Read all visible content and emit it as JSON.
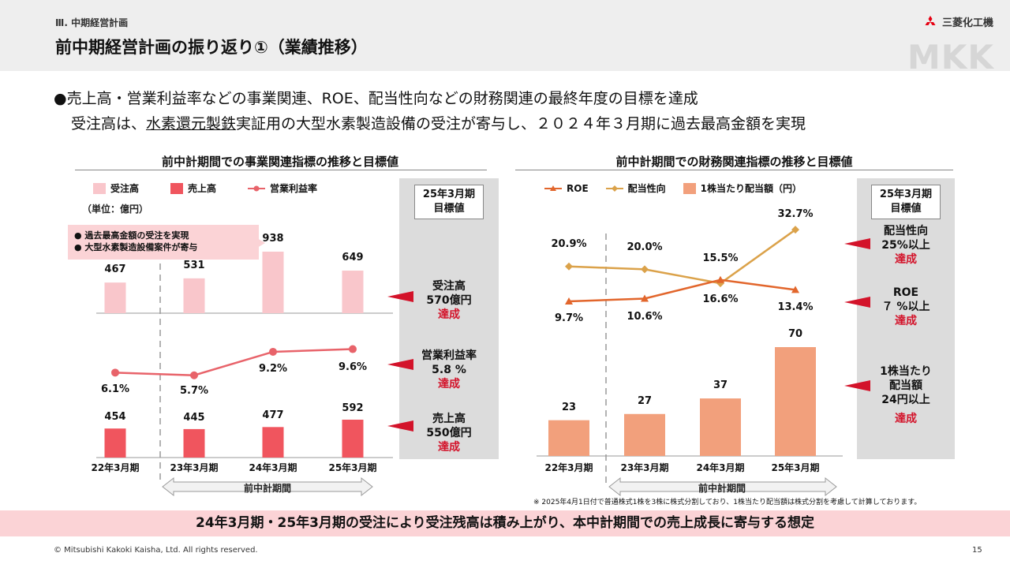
{
  "header": {
    "section_label": "Ⅲ. 中期経営計画",
    "title": "前中期経営計画の振り返り①（業績推移）",
    "logo_text": "三菱化工機",
    "watermark": "MKK"
  },
  "intro": {
    "line1": "●売上高・営業利益率などの事業関連、ROE、配当性向などの財務関連の最終年度の目標を達成",
    "line2_pre": "受注高は、",
    "line2_underlined": "水素還元製鉄",
    "line2_post": "実証用の大型水素製造設備の受注が寄与し、２０２４年３月期に過去最高金額を実現"
  },
  "left_panel": {
    "title": "前中計期間での事業関連指標の推移と目標値",
    "unit": "（単位：億円）",
    "legend": {
      "orders": "受注高",
      "sales": "売上高",
      "margin": "営業利益率"
    },
    "callout": [
      "●  過去最高金額の受注を実現",
      "●  大型水素製造設備案件が寄与"
    ],
    "period_label": "前中計期間",
    "target_header": [
      "25年3月期",
      "目標値"
    ],
    "targets": [
      {
        "name": "受注高",
        "value": "570億円",
        "status": "達成"
      },
      {
        "name": "営業利益率",
        "value": "5.8 %",
        "status": "達成"
      },
      {
        "name": "売上高",
        "value": "550億円",
        "status": "達成"
      }
    ]
  },
  "right_panel": {
    "title": "前中計期間での財務関連指標の推移と目標値",
    "legend": {
      "roe": "ROE",
      "payout": "配当性向",
      "dps": "1株当たり配当額（円）"
    },
    "period_label": "前中計期間",
    "target_header": [
      "25年3月期",
      "目標値"
    ],
    "targets": [
      {
        "name": "配当性向",
        "value": "25%以上",
        "status": "達成"
      },
      {
        "name": "ROE",
        "value": "７ %以上",
        "status": "達成"
      },
      {
        "name": "1株当たり",
        "name2": "配当額",
        "value": "24円以上",
        "status": "達成"
      }
    ],
    "note": "※ 2025年4月1日付で普通株式1株を3株に株式分割しており、1株当たり配当額は株式分割を考慮して計算しております。"
  },
  "chart_data": [
    {
      "type": "bar",
      "categories": [
        "22年3月期",
        "23年3月期",
        "24年3月期",
        "25年3月期"
      ],
      "series": [
        {
          "name": "受注高",
          "values": [
            467,
            531,
            938,
            649
          ],
          "labels": [
            "467",
            "531",
            "938",
            "649"
          ]
        },
        {
          "name": "売上高",
          "values": [
            454,
            445,
            477,
            592
          ],
          "labels": [
            "454",
            "445",
            "477",
            "592"
          ]
        },
        {
          "name": "営業利益率",
          "type": "line",
          "values": [
            6.1,
            5.7,
            9.2,
            9.6
          ],
          "labels": [
            "6.1%",
            "5.7%",
            "9.2%",
            "9.6%"
          ]
        }
      ],
      "colors": {
        "orders": "#f9c6cb",
        "sales": "#f0555e",
        "margin": "#e8636a"
      }
    },
    {
      "type": "bar",
      "categories": [
        "22年3月期",
        "23年3月期",
        "24年3月期",
        "25年3月期"
      ],
      "series": [
        {
          "name": "ROE",
          "type": "line",
          "values": [
            9.7,
            10.6,
            16.6,
            13.4
          ],
          "labels": [
            "9.7%",
            "10.6%",
            "16.6%",
            "13.4%"
          ]
        },
        {
          "name": "配当性向",
          "type": "line",
          "values": [
            20.9,
            20.0,
            15.5,
            32.7
          ],
          "labels": [
            "20.9%",
            "20.0%",
            "15.5%",
            "32.7%"
          ]
        },
        {
          "name": "1株当たり配当額（円）",
          "values": [
            23,
            27,
            37,
            70
          ],
          "labels": [
            "23",
            "27",
            "37",
            "70"
          ]
        }
      ],
      "colors": {
        "roe": "#e2662c",
        "payout": "#dba24a",
        "dps": "#f2a07c"
      }
    }
  ],
  "footer": {
    "banner": "24年3月期・25年3月期の受注により受注残高は積み上がり、本中計期間での売上成長に寄与する想定",
    "copyright": "© Mitsubishi Kakoki Kaisha, Ltd. All rights reserved.",
    "page": "15"
  }
}
